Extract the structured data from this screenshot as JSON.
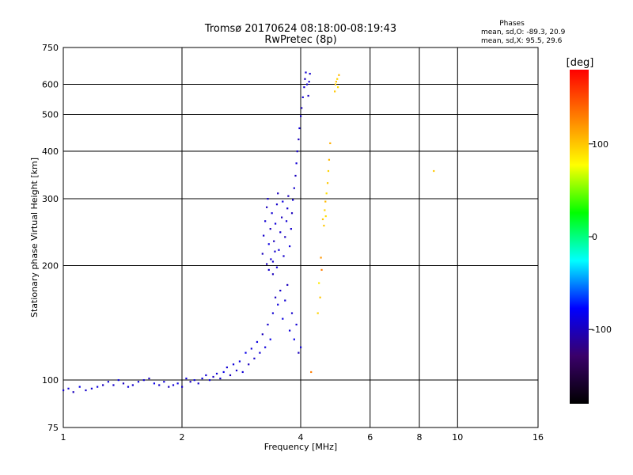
{
  "chart_data": {
    "type": "scatter",
    "title": "Tromsø 20170624 08:18:00-08:19:43",
    "subtitle": "RwPretec (8p)",
    "xlabel": "Frequency [MHz]",
    "ylabel": "Stationary phase Virtual Height [km]",
    "x_scale": "log",
    "y_scale": "log",
    "xlim": [
      1,
      16
    ],
    "ylim": [
      75,
      750
    ],
    "x_ticks": [
      1,
      2,
      4,
      6,
      8,
      10,
      16
    ],
    "x_tick_labels": [
      "1",
      "2",
      "4",
      "6",
      "8",
      "10",
      "16"
    ],
    "y_ticks": [
      75,
      100,
      200,
      300,
      400,
      500,
      600,
      750
    ],
    "y_tick_labels": [
      "75",
      "100",
      "200",
      "300",
      "400",
      "500",
      "600",
      "750"
    ],
    "grid": true,
    "stats": {
      "heading": "Phases",
      "line_o": "mean, sd,O: -89.3, 20.9",
      "line_x": "mean, sd,X:  95.5, 29.6"
    },
    "colorbar": {
      "label": "[deg]",
      "ticks": [
        100,
        0,
        -100
      ],
      "tick_labels": [
        "100",
        "0",
        "-100"
      ],
      "range": [
        -180,
        180
      ],
      "stops": [
        "#000000",
        "#3a006a",
        "#0000ff",
        "#00ffff",
        "#00ff00",
        "#ffff00",
        "#ff8000",
        "#ff0000"
      ]
    },
    "series": [
      {
        "description_mode": "O",
        "points": [
          [
            1.0,
            94,
            -95
          ],
          [
            1.03,
            95,
            -90
          ],
          [
            1.06,
            93,
            -100
          ],
          [
            1.1,
            96,
            -85
          ],
          [
            1.14,
            94,
            -95
          ],
          [
            1.18,
            95,
            -92
          ],
          [
            1.22,
            96,
            -88
          ],
          [
            1.26,
            97,
            -100
          ],
          [
            1.3,
            99,
            -90
          ],
          [
            1.34,
            97,
            -95
          ],
          [
            1.38,
            100,
            -85
          ],
          [
            1.42,
            98,
            -100
          ],
          [
            1.46,
            96,
            -90
          ],
          [
            1.5,
            97,
            -95
          ],
          [
            1.55,
            99,
            -88
          ],
          [
            1.6,
            100,
            -92
          ],
          [
            1.65,
            101,
            -100
          ],
          [
            1.7,
            98,
            -85
          ],
          [
            1.75,
            97,
            -95
          ],
          [
            1.8,
            99,
            -90
          ],
          [
            1.85,
            96,
            -100
          ],
          [
            1.9,
            97,
            -92
          ],
          [
            1.95,
            98,
            -88
          ],
          [
            2.0,
            96,
            -95
          ],
          [
            2.05,
            101,
            -90
          ],
          [
            2.1,
            99,
            -100
          ],
          [
            2.15,
            100,
            -85
          ],
          [
            2.2,
            98,
            -95
          ],
          [
            2.25,
            101,
            -90
          ],
          [
            2.3,
            103,
            -92
          ],
          [
            2.35,
            100,
            -88
          ],
          [
            2.4,
            102,
            -100
          ],
          [
            2.45,
            104,
            -90
          ],
          [
            2.5,
            101,
            -95
          ],
          [
            2.55,
            105,
            -85
          ],
          [
            2.6,
            108,
            -92
          ],
          [
            2.65,
            103,
            -100
          ],
          [
            2.7,
            110,
            -90
          ],
          [
            2.75,
            106,
            -95
          ],
          [
            2.8,
            112,
            -88
          ],
          [
            2.85,
            105,
            -92
          ],
          [
            2.9,
            118,
            -85
          ],
          [
            2.95,
            110,
            -100
          ],
          [
            3.0,
            121,
            -90
          ],
          [
            3.05,
            114,
            -95
          ],
          [
            3.1,
            126,
            -88
          ],
          [
            3.15,
            118,
            -92
          ],
          [
            3.2,
            132,
            -100
          ],
          [
            3.25,
            122,
            -90
          ],
          [
            3.3,
            140,
            -95
          ],
          [
            3.35,
            128,
            -85
          ],
          [
            3.4,
            150,
            -92
          ],
          [
            3.45,
            165,
            -100
          ],
          [
            3.5,
            158,
            -90
          ],
          [
            3.55,
            172,
            -95
          ],
          [
            3.6,
            145,
            -88
          ],
          [
            3.65,
            162,
            -92
          ],
          [
            3.7,
            178,
            -100
          ],
          [
            3.75,
            135,
            -90
          ],
          [
            3.8,
            150,
            -95
          ],
          [
            3.85,
            128,
            -85
          ],
          [
            3.9,
            140,
            -92
          ],
          [
            3.95,
            118,
            -100
          ],
          [
            4.0,
            122,
            -90
          ],
          [
            3.2,
            215,
            -100
          ],
          [
            3.22,
            240,
            -95
          ],
          [
            3.25,
            262,
            -92
          ],
          [
            3.28,
            285,
            -100
          ],
          [
            3.3,
            300,
            -95
          ],
          [
            3.32,
            228,
            -88
          ],
          [
            3.35,
            250,
            -100
          ],
          [
            3.38,
            275,
            -92
          ],
          [
            3.4,
            205,
            -95
          ],
          [
            3.42,
            232,
            -100
          ],
          [
            3.45,
            258,
            -90
          ],
          [
            3.48,
            290,
            -95
          ],
          [
            3.5,
            310,
            -100
          ],
          [
            3.52,
            220,
            -92
          ],
          [
            3.55,
            245,
            -95
          ],
          [
            3.58,
            268,
            -100
          ],
          [
            3.6,
            295,
            -88
          ],
          [
            3.62,
            212,
            -95
          ],
          [
            3.65,
            238,
            -100
          ],
          [
            3.68,
            262,
            -92
          ],
          [
            3.7,
            283,
            -95
          ],
          [
            3.72,
            305,
            -100
          ],
          [
            3.75,
            225,
            -90
          ],
          [
            3.78,
            250,
            -95
          ],
          [
            3.8,
            275,
            -100
          ],
          [
            3.82,
            298,
            -92
          ],
          [
            3.85,
            320,
            -95
          ],
          [
            3.88,
            345,
            -100
          ],
          [
            3.9,
            372,
            -92
          ],
          [
            3.92,
            400,
            -95
          ],
          [
            3.95,
            430,
            -100
          ],
          [
            3.97,
            460,
            -92
          ],
          [
            4.0,
            495,
            -95
          ],
          [
            4.02,
            520,
            -100
          ],
          [
            4.05,
            555,
            -92
          ],
          [
            4.08,
            590,
            -95
          ],
          [
            4.1,
            620,
            -100
          ],
          [
            4.12,
            645,
            -92
          ],
          [
            4.15,
            600,
            -95
          ],
          [
            4.18,
            560,
            -100
          ],
          [
            4.2,
            610,
            -92
          ],
          [
            4.22,
            640,
            -95
          ],
          [
            3.28,
            202,
            -100
          ],
          [
            3.32,
            195,
            -95
          ],
          [
            3.36,
            208,
            -92
          ],
          [
            3.4,
            190,
            -100
          ],
          [
            3.44,
            218,
            -95
          ],
          [
            3.48,
            198,
            -92
          ]
        ]
      },
      {
        "description_mode": "X",
        "points": [
          [
            4.55,
            265,
            100
          ],
          [
            4.6,
            280,
            95
          ],
          [
            4.62,
            295,
            105
          ],
          [
            4.65,
            310,
            90
          ],
          [
            4.68,
            330,
            100
          ],
          [
            4.7,
            355,
            95
          ],
          [
            4.72,
            380,
            105
          ],
          [
            4.75,
            420,
            110
          ],
          [
            4.58,
            255,
            100
          ],
          [
            4.63,
            270,
            90
          ],
          [
            4.5,
            210,
            120
          ],
          [
            4.52,
            195,
            130
          ],
          [
            4.45,
            180,
            85
          ],
          [
            4.48,
            165,
            100
          ],
          [
            4.42,
            150,
            95
          ],
          [
            4.9,
            600,
            100
          ],
          [
            4.95,
            620,
            95
          ],
          [
            5.0,
            635,
            105
          ],
          [
            4.92,
            610,
            100
          ],
          [
            4.97,
            590,
            90
          ],
          [
            4.88,
            575,
            100
          ],
          [
            8.7,
            355,
            100
          ],
          [
            4.25,
            105,
            130
          ]
        ]
      }
    ]
  }
}
